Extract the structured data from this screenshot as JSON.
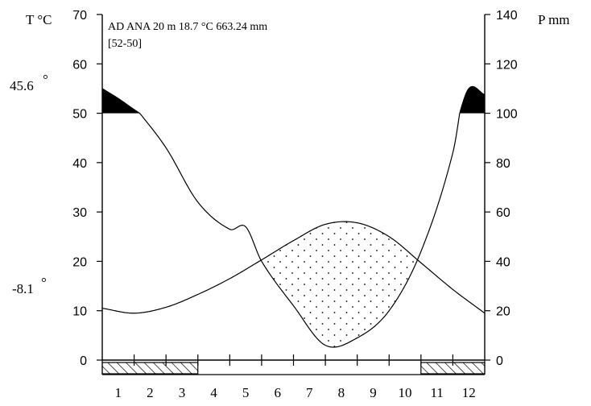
{
  "chart_data": {
    "type": "line",
    "station_header": "AD ANA 20 m 18.7 °C 663.24 mm",
    "period": "[52-50]",
    "left_axis_label": "T °C",
    "right_axis_label": "P mm",
    "abs_max_label": "45.6",
    "abs_min_label": "-8.1",
    "degree_glyph": "°",
    "categories": [
      "1",
      "2",
      "3",
      "4",
      "5",
      "6",
      "7",
      "8",
      "9",
      "10",
      "11",
      "12"
    ],
    "x_range": [
      0.5,
      12.5
    ],
    "left_ticks": [
      "0",
      "10",
      "20",
      "30",
      "40",
      "50",
      "60",
      "70"
    ],
    "right_ticks": [
      "0",
      "20",
      "40",
      "60",
      "80",
      "100",
      "120",
      "140"
    ],
    "left_ylim": [
      0,
      70
    ],
    "right_ylim": [
      0,
      140
    ],
    "series": [
      {
        "key": "temperature",
        "axis": "left",
        "x": [
          0.5,
          1.5,
          2.5,
          3.5,
          4.5,
          5.5,
          6.5,
          7.5,
          8.5,
          9.5,
          10.5,
          11.5,
          12.5
        ],
        "values": [
          10.5,
          9.5,
          10.7,
          13.3,
          16.5,
          20.3,
          24.2,
          27.5,
          27.8,
          25.0,
          19.7,
          14.3,
          9.5
        ]
      },
      {
        "key": "precipitation",
        "axis": "right",
        "x": [
          0.5,
          1.0,
          1.5,
          2.5,
          3.5,
          4.5,
          5.0,
          5.5,
          6.5,
          7.5,
          8.5,
          9.5,
          10.5,
          11.5,
          12.0,
          12.5
        ],
        "values": [
          120,
          112,
          103,
          86,
          64,
          53,
          54,
          40,
          22,
          6,
          9,
          20,
          44,
          84,
          120,
          115
        ]
      }
    ],
    "frost_months": [
      {
        "from": 0.5,
        "to": 3.5
      },
      {
        "from": 10.5,
        "to": 12.5
      }
    ],
    "colors": {
      "line": "#000000",
      "humid_fill": "#000000",
      "background": "#ffffff"
    }
  }
}
